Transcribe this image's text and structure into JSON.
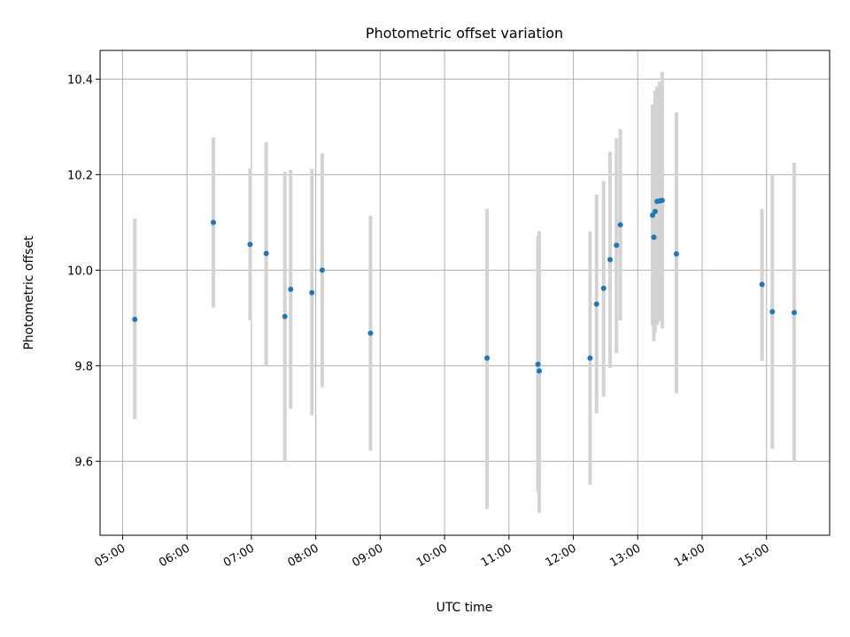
{
  "chart_data": {
    "type": "scatter",
    "title": "Photometric offset variation",
    "xlabel": "UTC time",
    "ylabel": "Photometric offset",
    "x_unit": "hours (UTC)",
    "xlim": [
      4.65,
      15.98
    ],
    "ylim": [
      9.445,
      10.46
    ],
    "grid": true,
    "x_ticks": [
      {
        "value": 5,
        "label": "05:00"
      },
      {
        "value": 6,
        "label": "06:00"
      },
      {
        "value": 7,
        "label": "07:00"
      },
      {
        "value": 8,
        "label": "08:00"
      },
      {
        "value": 9,
        "label": "09:00"
      },
      {
        "value": 10,
        "label": "10:00"
      },
      {
        "value": 11,
        "label": "11:00"
      },
      {
        "value": 12,
        "label": "12:00"
      },
      {
        "value": 13,
        "label": "13:00"
      },
      {
        "value": 14,
        "label": "14:00"
      },
      {
        "value": 15,
        "label": "15:00"
      }
    ],
    "y_ticks": [
      {
        "value": 9.6,
        "label": "9.6"
      },
      {
        "value": 9.8,
        "label": "9.8"
      },
      {
        "value": 10.0,
        "label": "10.0"
      },
      {
        "value": 10.2,
        "label": "10.2"
      },
      {
        "value": 10.4,
        "label": "10.4"
      }
    ],
    "marker_color": "#1f77b4",
    "errorbar_color": "#d3d3d3",
    "points": [
      {
        "x": 5.19,
        "y": 9.897,
        "ylo": 9.688,
        "yhi": 10.108
      },
      {
        "x": 6.41,
        "y": 10.1,
        "ylo": 9.922,
        "yhi": 10.278
      },
      {
        "x": 6.98,
        "y": 10.054,
        "ylo": 9.895,
        "yhi": 10.213
      },
      {
        "x": 7.23,
        "y": 10.035,
        "ylo": 9.8,
        "yhi": 10.268
      },
      {
        "x": 7.52,
        "y": 9.903,
        "ylo": 9.6,
        "yhi": 10.206
      },
      {
        "x": 7.61,
        "y": 9.96,
        "ylo": 9.71,
        "yhi": 10.21
      },
      {
        "x": 7.94,
        "y": 9.953,
        "ylo": 9.696,
        "yhi": 10.212
      },
      {
        "x": 8.1,
        "y": 10.0,
        "ylo": 9.755,
        "yhi": 10.245
      },
      {
        "x": 8.85,
        "y": 9.868,
        "ylo": 9.622,
        "yhi": 10.114
      },
      {
        "x": 10.66,
        "y": 9.816,
        "ylo": 9.5,
        "yhi": 10.128
      },
      {
        "x": 11.45,
        "y": 9.803,
        "ylo": 9.535,
        "yhi": 10.071
      },
      {
        "x": 11.47,
        "y": 9.789,
        "ylo": 9.492,
        "yhi": 10.082
      },
      {
        "x": 12.26,
        "y": 9.816,
        "ylo": 9.551,
        "yhi": 10.081
      },
      {
        "x": 12.36,
        "y": 9.929,
        "ylo": 9.7,
        "yhi": 10.158
      },
      {
        "x": 12.47,
        "y": 9.962,
        "ylo": 9.735,
        "yhi": 10.187
      },
      {
        "x": 12.57,
        "y": 10.022,
        "ylo": 9.795,
        "yhi": 10.248
      },
      {
        "x": 12.67,
        "y": 10.052,
        "ylo": 9.826,
        "yhi": 10.276
      },
      {
        "x": 12.73,
        "y": 10.095,
        "ylo": 9.895,
        "yhi": 10.295
      },
      {
        "x": 13.23,
        "y": 10.115,
        "ylo": 9.884,
        "yhi": 10.347
      },
      {
        "x": 13.25,
        "y": 10.069,
        "ylo": 9.851,
        "yhi": 10.288
      },
      {
        "x": 13.27,
        "y": 10.123,
        "ylo": 9.87,
        "yhi": 10.376
      },
      {
        "x": 13.3,
        "y": 10.144,
        "ylo": 9.885,
        "yhi": 10.385
      },
      {
        "x": 13.34,
        "y": 10.145,
        "ylo": 9.893,
        "yhi": 10.395
      },
      {
        "x": 13.38,
        "y": 10.146,
        "ylo": 9.878,
        "yhi": 10.415
      },
      {
        "x": 13.6,
        "y": 10.034,
        "ylo": 9.742,
        "yhi": 10.33
      },
      {
        "x": 14.93,
        "y": 9.97,
        "ylo": 9.81,
        "yhi": 10.128
      },
      {
        "x": 15.09,
        "y": 9.913,
        "ylo": 9.626,
        "yhi": 10.2
      },
      {
        "x": 15.43,
        "y": 9.911,
        "ylo": 9.6,
        "yhi": 10.225
      }
    ]
  }
}
